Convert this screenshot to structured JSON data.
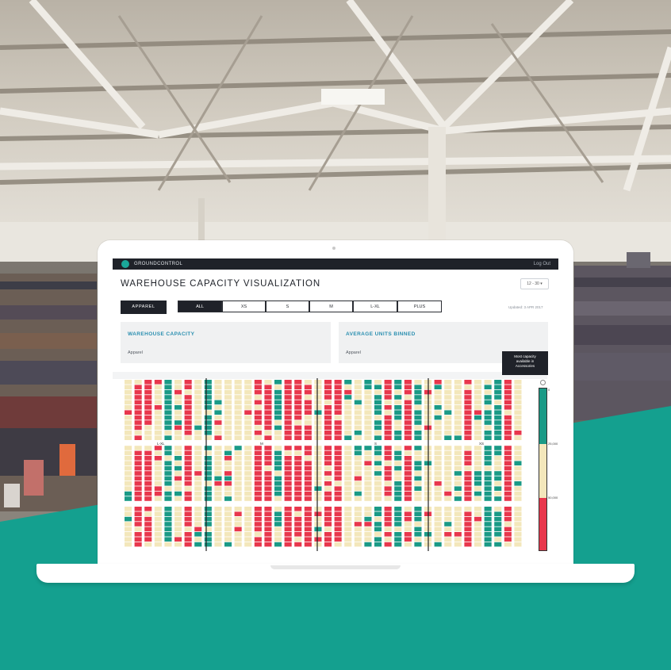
{
  "app": {
    "brand": "GROUNDCONTROL",
    "logout": "Log Out",
    "title": "WAREHOUSE CAPACITY VISUALIZATION",
    "date_select": "12 - 30 ▾",
    "updated": "Updated: 3 APR 2017"
  },
  "filters": {
    "apparel": "APPAREL",
    "sizes": [
      "ALL",
      "XS",
      "S",
      "M",
      "L-XL",
      "PLUS"
    ],
    "active": "ALL"
  },
  "cards": [
    {
      "title": "WAREHOUSE CAPACITY",
      "sub": "Apparel"
    },
    {
      "title": "AVERAGE UNITS BINNED",
      "sub": "Apparel"
    }
  ],
  "tooltip": {
    "line1": "Most capacity",
    "line2": "available in",
    "line3": "Accessories"
  },
  "grid": {
    "section_labels": [
      "L-XL",
      "M",
      "S",
      "XS"
    ],
    "legend_labels": [
      "0",
      "25,000",
      "50,000"
    ]
  },
  "colors": {
    "teal": "#14a08f",
    "red": "#e8374c",
    "cream": "#f3e7bb",
    "green": "#1a9a86",
    "dark": "#1f2229",
    "accent_blue": "#2a8fb0"
  }
}
